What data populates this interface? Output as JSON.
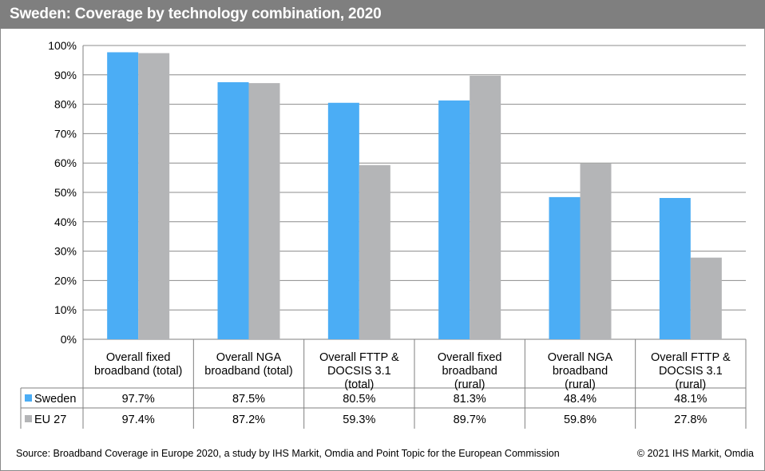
{
  "header": {
    "title": "Sweden: Coverage by technology combination, 2020"
  },
  "chart_data": {
    "type": "bar",
    "title": "Sweden: Coverage by technology combination, 2020",
    "xlabel": "",
    "ylabel": "",
    "ylim": [
      0,
      100
    ],
    "yticks": [
      "0%",
      "10%",
      "20%",
      "30%",
      "40%",
      "50%",
      "60%",
      "70%",
      "80%",
      "90%",
      "100%"
    ],
    "grid": true,
    "categories": [
      [
        "Overall fixed",
        "broadband (total)"
      ],
      [
        "Overall NGA",
        "broadband (total)"
      ],
      [
        "Overall FTTP &",
        "DOCSIS 3.1",
        "(total)"
      ],
      [
        "Overall fixed",
        "broadband",
        "(rural)"
      ],
      [
        "Overall NGA",
        "broadband",
        "(rural)"
      ],
      [
        "Overall FTTP &",
        "DOCSIS 3.1",
        "(rural)"
      ]
    ],
    "series": [
      {
        "name": "Sweden",
        "color": "#4badf5",
        "values": [
          97.7,
          87.5,
          80.5,
          81.3,
          48.4,
          48.1
        ],
        "labels": [
          "97.7%",
          "87.5%",
          "80.5%",
          "81.3%",
          "48.4%",
          "48.1%"
        ]
      },
      {
        "name": "EU 27",
        "color": "#b4b5b7",
        "values": [
          97.4,
          87.2,
          59.3,
          89.7,
          59.8,
          27.8
        ],
        "labels": [
          "97.4%",
          "87.2%",
          "59.3%",
          "89.7%",
          "59.8%",
          "27.8%"
        ]
      }
    ],
    "legend": "data-table"
  },
  "footer": {
    "source": "Source: Broadband Coverage in Europe 2020, a study by IHS Markit, Omdia and Point Topic for the European Commission",
    "copyright": "© 2021 IHS Markit, Omdia"
  }
}
